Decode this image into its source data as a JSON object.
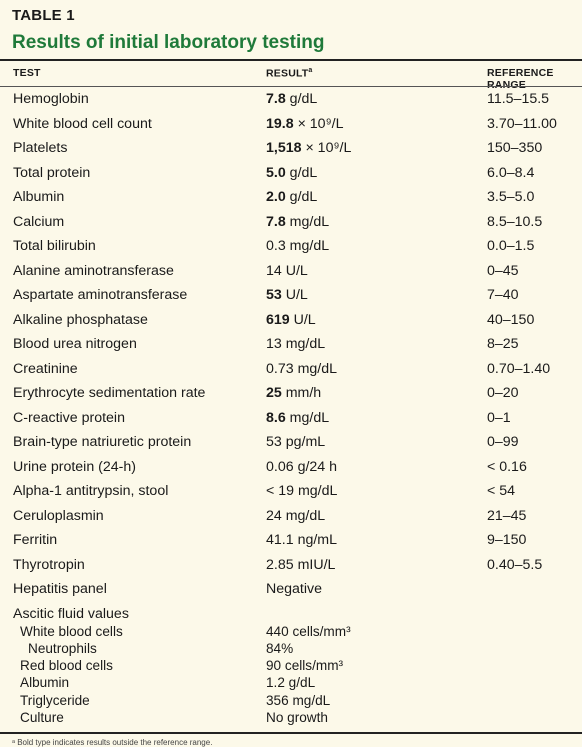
{
  "table": {
    "label": "TABLE 1",
    "title": "Results of initial laboratory testing",
    "headers": {
      "test": "TEST",
      "result": "RESULT",
      "result_mark": "a",
      "range": "REFERENCE RANGE"
    },
    "rows": [
      {
        "test": "Hemoglobin",
        "value": "7.8",
        "unit": " g/dL",
        "bold": true,
        "range": "11.5–15.5"
      },
      {
        "test": "White blood cell count",
        "value": "19.8",
        "unit": " × 10⁹/L",
        "bold": true,
        "range": "3.70–11.00"
      },
      {
        "test": "Platelets",
        "value": "1,518",
        "unit": " × 10⁹/L",
        "bold": true,
        "range": "150–350"
      },
      {
        "test": "Total protein",
        "value": "5.0",
        "unit": " g/dL",
        "bold": true,
        "range": "6.0–8.4"
      },
      {
        "test": "Albumin",
        "value": "2.0",
        "unit": " g/dL",
        "bold": true,
        "range": "3.5–5.0"
      },
      {
        "test": "Calcium",
        "value": "7.8",
        "unit": " mg/dL",
        "bold": true,
        "range": "8.5–10.5"
      },
      {
        "test": "Total bilirubin",
        "value": "0.3",
        "unit": " mg/dL",
        "bold": false,
        "range": "0.0–1.5"
      },
      {
        "test": "Alanine aminotransferase",
        "value": "14",
        "unit": " U/L",
        "bold": false,
        "range": "0–45"
      },
      {
        "test": "Aspartate aminotransferase",
        "value": "53",
        "unit": " U/L",
        "bold": true,
        "range": "7–40"
      },
      {
        "test": "Alkaline phosphatase",
        "value": "619",
        "unit": " U/L",
        "bold": true,
        "range": "40–150"
      },
      {
        "test": "Blood urea nitrogen",
        "value": "13",
        "unit": " mg/dL",
        "bold": false,
        "range": "8–25"
      },
      {
        "test": "Creatinine",
        "value": "0.73",
        "unit": " mg/dL",
        "bold": false,
        "range": "0.70–1.40"
      },
      {
        "test": "Erythrocyte sedimentation rate",
        "value": "25",
        "unit": " mm/h",
        "bold": true,
        "range": "0–20"
      },
      {
        "test": "C-reactive protein",
        "value": "8.6",
        "unit": " mg/dL",
        "bold": true,
        "range": "0–1"
      },
      {
        "test": "Brain-type natriuretic protein",
        "value": "53",
        "unit": " pg/mL",
        "bold": false,
        "range": "0–99"
      },
      {
        "test": "Urine protein (24-h)",
        "value": "0.06",
        "unit": " g/24 h",
        "bold": false,
        "range": "< 0.16"
      },
      {
        "test": "Alpha-1 antitrypsin, stool",
        "value": "< 19",
        "unit": " mg/dL",
        "bold": false,
        "range": "< 54"
      },
      {
        "test": "Ceruloplasmin",
        "value": "24",
        "unit": " mg/dL",
        "bold": false,
        "range": "21–45"
      },
      {
        "test": "Ferritin",
        "value": "41.1",
        "unit": " ng/mL",
        "bold": false,
        "range": "9–150"
      },
      {
        "test": "Thyrotropin",
        "value": "2.85",
        "unit": " mIU/L",
        "bold": false,
        "range": "0.40–5.5"
      },
      {
        "test": "Hepatitis panel",
        "value": "Negative",
        "unit": "",
        "bold": false,
        "range": ""
      }
    ],
    "ascitic_title": "Ascitic fluid values",
    "ascitic": [
      {
        "test": "White blood cells",
        "value": "440 cells/mm³",
        "indent": 1
      },
      {
        "test": "Neutrophils",
        "value": "84%",
        "indent": 2
      },
      {
        "test": "Red blood cells",
        "value": "90 cells/mm³",
        "indent": 1
      },
      {
        "test": "Albumin",
        "value": "1.2 g/dL",
        "indent": 1
      },
      {
        "test": "Triglyceride",
        "value": "356 mg/dL",
        "indent": 1
      },
      {
        "test": "Culture",
        "value": "No growth",
        "indent": 1
      }
    ],
    "footnote": "ᵃ Bold type indicates results outside the reference range."
  }
}
